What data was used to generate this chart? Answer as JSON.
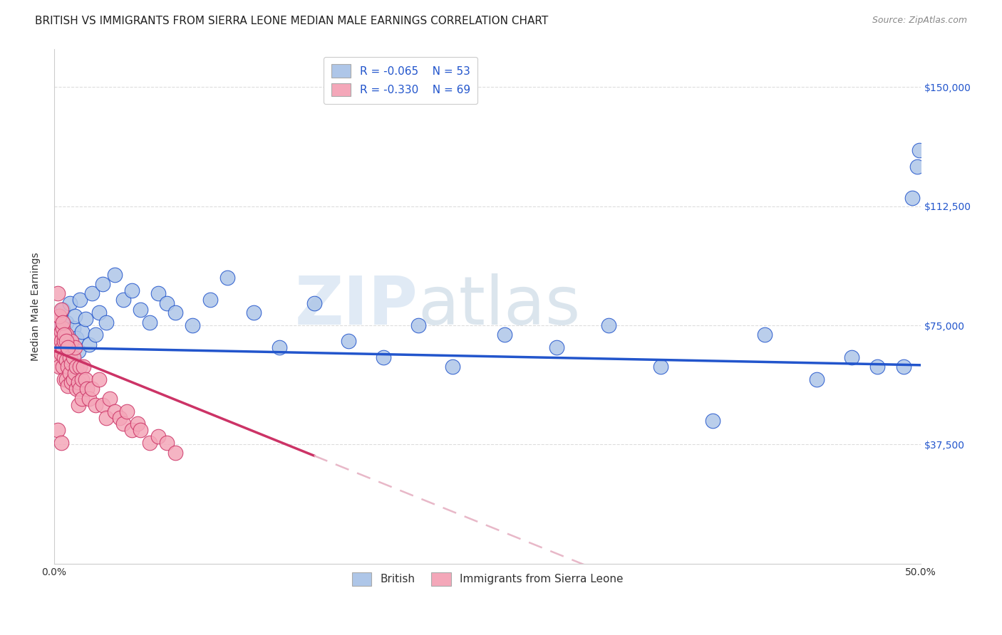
{
  "title": "BRITISH VS IMMIGRANTS FROM SIERRA LEONE MEDIAN MALE EARNINGS CORRELATION CHART",
  "source": "Source: ZipAtlas.com",
  "ylabel": "Median Male Earnings",
  "ytick_labels": [
    "$37,500",
    "$75,000",
    "$112,500",
    "$150,000"
  ],
  "ytick_values": [
    37500,
    75000,
    112500,
    150000
  ],
  "xmin": 0.0,
  "xmax": 0.5,
  "ymin": 0,
  "ymax": 162000,
  "legend_british_R": "-0.065",
  "legend_british_N": "53",
  "legend_sl_R": "-0.330",
  "legend_sl_N": "69",
  "british_color": "#aec6e8",
  "sl_color": "#f4a7b9",
  "british_line_color": "#2255cc",
  "sl_line_color": "#cc3366",
  "sl_trendline_dashed_color": "#e8b8c8",
  "watermark_zip": "ZIP",
  "watermark_atlas": "atlas",
  "background_color": "#ffffff",
  "grid_color": "#dddddd",
  "title_fontsize": 11,
  "axis_label_fontsize": 10,
  "tick_fontsize": 10,
  "legend_fontsize": 11,
  "british_x": [
    0.002,
    0.003,
    0.004,
    0.005,
    0.006,
    0.007,
    0.008,
    0.009,
    0.01,
    0.011,
    0.012,
    0.013,
    0.014,
    0.015,
    0.016,
    0.018,
    0.02,
    0.022,
    0.024,
    0.026,
    0.028,
    0.03,
    0.035,
    0.04,
    0.045,
    0.05,
    0.055,
    0.06,
    0.065,
    0.07,
    0.08,
    0.09,
    0.1,
    0.115,
    0.13,
    0.15,
    0.17,
    0.19,
    0.21,
    0.23,
    0.26,
    0.29,
    0.32,
    0.35,
    0.38,
    0.41,
    0.44,
    0.46,
    0.475,
    0.49,
    0.495,
    0.498,
    0.499
  ],
  "british_y": [
    68000,
    72000,
    75000,
    80000,
    70000,
    76000,
    65000,
    82000,
    68000,
    74000,
    78000,
    71000,
    67000,
    83000,
    73000,
    77000,
    69000,
    85000,
    72000,
    79000,
    88000,
    76000,
    91000,
    83000,
    86000,
    80000,
    76000,
    85000,
    82000,
    79000,
    75000,
    83000,
    90000,
    79000,
    68000,
    82000,
    70000,
    65000,
    75000,
    62000,
    72000,
    68000,
    75000,
    62000,
    45000,
    72000,
    58000,
    65000,
    62000,
    62000,
    115000,
    125000,
    130000
  ],
  "sl_x": [
    0.001,
    0.001,
    0.002,
    0.002,
    0.003,
    0.003,
    0.003,
    0.004,
    0.004,
    0.004,
    0.005,
    0.005,
    0.005,
    0.006,
    0.006,
    0.006,
    0.007,
    0.007,
    0.007,
    0.008,
    0.008,
    0.008,
    0.009,
    0.009,
    0.01,
    0.01,
    0.01,
    0.011,
    0.011,
    0.012,
    0.012,
    0.013,
    0.013,
    0.014,
    0.014,
    0.015,
    0.015,
    0.016,
    0.016,
    0.017,
    0.018,
    0.019,
    0.02,
    0.022,
    0.024,
    0.026,
    0.028,
    0.03,
    0.032,
    0.035,
    0.038,
    0.04,
    0.042,
    0.045,
    0.048,
    0.05,
    0.055,
    0.06,
    0.065,
    0.07,
    0.002,
    0.003,
    0.004,
    0.005,
    0.006,
    0.007,
    0.008,
    0.002,
    0.004
  ],
  "sl_y": [
    70000,
    65000,
    75000,
    68000,
    72000,
    62000,
    78000,
    73000,
    66000,
    70000,
    68000,
    62000,
    74000,
    65000,
    58000,
    70000,
    64000,
    58000,
    72000,
    62000,
    56000,
    68000,
    60000,
    65000,
    70000,
    63000,
    57000,
    65000,
    58000,
    68000,
    60000,
    55000,
    62000,
    50000,
    57000,
    62000,
    55000,
    52000,
    58000,
    62000,
    58000,
    55000,
    52000,
    55000,
    50000,
    58000,
    50000,
    46000,
    52000,
    48000,
    46000,
    44000,
    48000,
    42000,
    44000,
    42000,
    38000,
    40000,
    38000,
    35000,
    85000,
    78000,
    80000,
    76000,
    72000,
    70000,
    68000,
    42000,
    38000
  ]
}
